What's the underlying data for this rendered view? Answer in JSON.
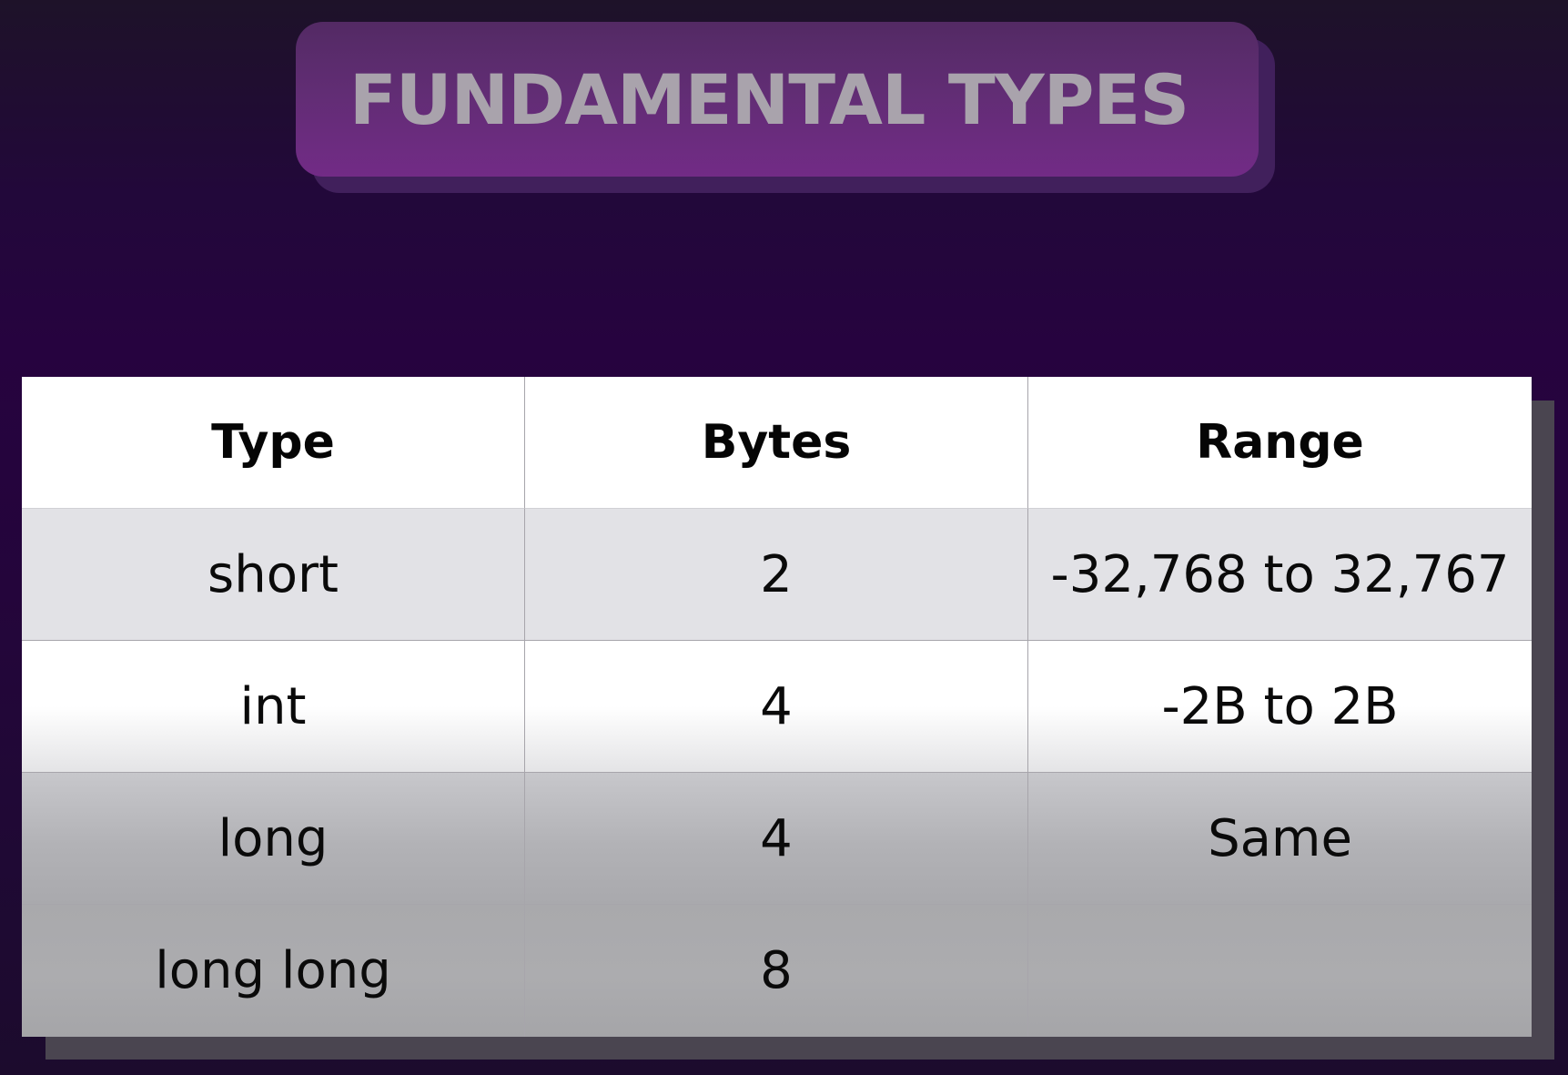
{
  "title": "FUNDAMENTAL TYPES",
  "table": {
    "headers": [
      "Type",
      "Bytes",
      "Range"
    ],
    "rows": [
      [
        "short",
        "2",
        "-32,768 to 32,767"
      ],
      [
        "int",
        "4",
        "-2B to 2B"
      ],
      [
        "long",
        "4",
        "Same"
      ],
      [
        "long long",
        "8",
        ""
      ]
    ]
  },
  "colors": {
    "background": "#26033f",
    "title_pill": "#722b86",
    "title_text": "#a9a3ac",
    "header_row": "#ffffff",
    "shaded_row": "#e2e2e6"
  }
}
